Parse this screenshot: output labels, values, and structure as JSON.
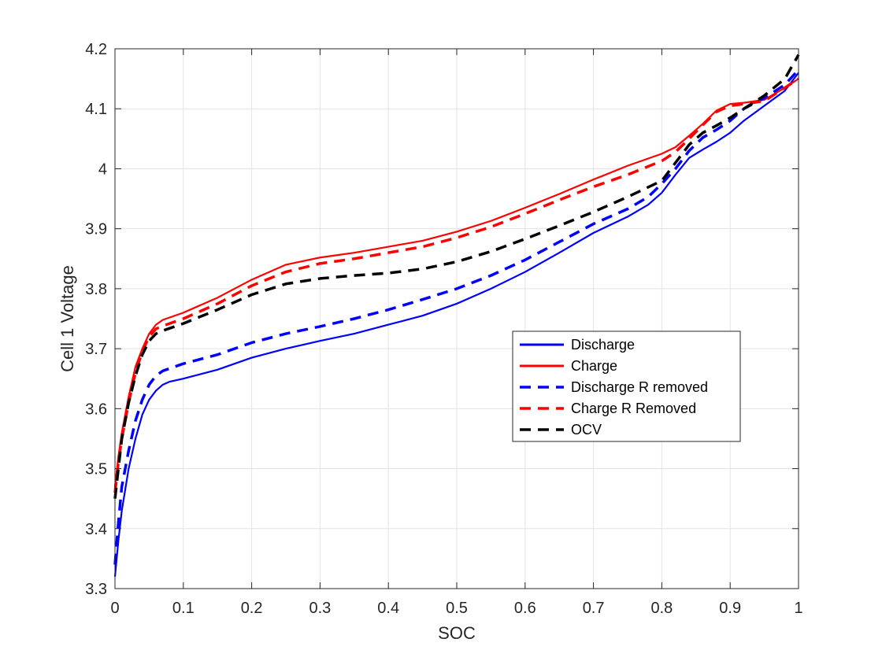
{
  "chart_data": {
    "type": "line",
    "title": "",
    "xlabel": "SOC",
    "ylabel": "Cell 1 Voltage",
    "xlim": [
      0,
      1
    ],
    "ylim": [
      3.3,
      4.2
    ],
    "xticks": [
      "0",
      "0.1",
      "0.2",
      "0.3",
      "0.4",
      "0.5",
      "0.6",
      "0.7",
      "0.8",
      "0.9",
      "1"
    ],
    "yticks": [
      "3.3",
      "3.4",
      "3.5",
      "3.6",
      "3.7",
      "3.8",
      "3.9",
      "4",
      "4.1",
      "4.2"
    ],
    "grid": true,
    "legend_position": "center-right",
    "series": [
      {
        "name": "Discharge",
        "color": "#0000ff",
        "style": "solid",
        "points": [
          [
            0,
            3.32
          ],
          [
            0.005,
            3.38
          ],
          [
            0.01,
            3.43
          ],
          [
            0.02,
            3.5
          ],
          [
            0.03,
            3.55
          ],
          [
            0.04,
            3.59
          ],
          [
            0.05,
            3.615
          ],
          [
            0.06,
            3.63
          ],
          [
            0.07,
            3.64
          ],
          [
            0.08,
            3.645
          ],
          [
            0.1,
            3.65
          ],
          [
            0.15,
            3.665
          ],
          [
            0.2,
            3.685
          ],
          [
            0.25,
            3.7
          ],
          [
            0.3,
            3.713
          ],
          [
            0.35,
            3.725
          ],
          [
            0.4,
            3.74
          ],
          [
            0.45,
            3.755
          ],
          [
            0.5,
            3.775
          ],
          [
            0.55,
            3.8
          ],
          [
            0.6,
            3.828
          ],
          [
            0.65,
            3.86
          ],
          [
            0.7,
            3.893
          ],
          [
            0.75,
            3.92
          ],
          [
            0.78,
            3.94
          ],
          [
            0.8,
            3.96
          ],
          [
            0.82,
            3.99
          ],
          [
            0.84,
            4.018
          ],
          [
            0.86,
            4.032
          ],
          [
            0.88,
            4.045
          ],
          [
            0.9,
            4.06
          ],
          [
            0.92,
            4.08
          ],
          [
            0.95,
            4.105
          ],
          [
            0.98,
            4.13
          ],
          [
            1.0,
            4.16
          ]
        ]
      },
      {
        "name": "Charge",
        "color": "#ff0000",
        "style": "solid",
        "points": [
          [
            0,
            3.47
          ],
          [
            0.005,
            3.52
          ],
          [
            0.01,
            3.56
          ],
          [
            0.02,
            3.62
          ],
          [
            0.03,
            3.67
          ],
          [
            0.04,
            3.7
          ],
          [
            0.05,
            3.725
          ],
          [
            0.06,
            3.74
          ],
          [
            0.07,
            3.748
          ],
          [
            0.1,
            3.76
          ],
          [
            0.15,
            3.785
          ],
          [
            0.2,
            3.815
          ],
          [
            0.25,
            3.84
          ],
          [
            0.3,
            3.852
          ],
          [
            0.35,
            3.86
          ],
          [
            0.4,
            3.87
          ],
          [
            0.45,
            3.88
          ],
          [
            0.5,
            3.895
          ],
          [
            0.55,
            3.913
          ],
          [
            0.6,
            3.935
          ],
          [
            0.65,
            3.958
          ],
          [
            0.7,
            3.982
          ],
          [
            0.75,
            4.005
          ],
          [
            0.8,
            4.025
          ],
          [
            0.82,
            4.036
          ],
          [
            0.84,
            4.055
          ],
          [
            0.86,
            4.075
          ],
          [
            0.88,
            4.097
          ],
          [
            0.9,
            4.108
          ],
          [
            0.92,
            4.11
          ],
          [
            0.95,
            4.115
          ],
          [
            0.98,
            4.135
          ],
          [
            1.0,
            4.15
          ]
        ]
      },
      {
        "name": "Discharge R removed",
        "color": "#0000ff",
        "style": "dashed",
        "points": [
          [
            0,
            3.34
          ],
          [
            0.005,
            3.41
          ],
          [
            0.01,
            3.47
          ],
          [
            0.02,
            3.53
          ],
          [
            0.03,
            3.58
          ],
          [
            0.04,
            3.615
          ],
          [
            0.05,
            3.64
          ],
          [
            0.06,
            3.655
          ],
          [
            0.07,
            3.663
          ],
          [
            0.1,
            3.675
          ],
          [
            0.15,
            3.69
          ],
          [
            0.2,
            3.71
          ],
          [
            0.25,
            3.725
          ],
          [
            0.3,
            3.737
          ],
          [
            0.35,
            3.75
          ],
          [
            0.4,
            3.765
          ],
          [
            0.45,
            3.782
          ],
          [
            0.5,
            3.8
          ],
          [
            0.55,
            3.822
          ],
          [
            0.6,
            3.848
          ],
          [
            0.65,
            3.878
          ],
          [
            0.7,
            3.908
          ],
          [
            0.75,
            3.933
          ],
          [
            0.78,
            3.953
          ],
          [
            0.8,
            3.975
          ],
          [
            0.82,
            4.0
          ],
          [
            0.84,
            4.03
          ],
          [
            0.86,
            4.052
          ],
          [
            0.88,
            4.065
          ],
          [
            0.9,
            4.08
          ],
          [
            0.92,
            4.1
          ],
          [
            0.95,
            4.118
          ],
          [
            0.98,
            4.14
          ],
          [
            1.0,
            4.165
          ]
        ]
      },
      {
        "name": "Charge R Removed",
        "color": "#ff0000",
        "style": "dashed",
        "points": [
          [
            0,
            3.46
          ],
          [
            0.005,
            3.51
          ],
          [
            0.01,
            3.55
          ],
          [
            0.02,
            3.61
          ],
          [
            0.03,
            3.66
          ],
          [
            0.04,
            3.695
          ],
          [
            0.05,
            3.72
          ],
          [
            0.06,
            3.733
          ],
          [
            0.07,
            3.738
          ],
          [
            0.1,
            3.75
          ],
          [
            0.15,
            3.775
          ],
          [
            0.2,
            3.805
          ],
          [
            0.25,
            3.828
          ],
          [
            0.3,
            3.842
          ],
          [
            0.35,
            3.85
          ],
          [
            0.4,
            3.86
          ],
          [
            0.45,
            3.87
          ],
          [
            0.5,
            3.885
          ],
          [
            0.55,
            3.903
          ],
          [
            0.6,
            3.925
          ],
          [
            0.65,
            3.948
          ],
          [
            0.7,
            3.97
          ],
          [
            0.75,
            3.99
          ],
          [
            0.8,
            4.013
          ],
          [
            0.82,
            4.028
          ],
          [
            0.84,
            4.05
          ],
          [
            0.86,
            4.073
          ],
          [
            0.88,
            4.095
          ],
          [
            0.9,
            4.105
          ],
          [
            0.92,
            4.108
          ],
          [
            0.95,
            4.113
          ],
          [
            0.98,
            4.135
          ],
          [
            1.0,
            4.15
          ]
        ]
      },
      {
        "name": "OCV",
        "color": "#000000",
        "style": "dashed",
        "points": [
          [
            0,
            3.45
          ],
          [
            0.005,
            3.5
          ],
          [
            0.01,
            3.55
          ],
          [
            0.02,
            3.61
          ],
          [
            0.03,
            3.655
          ],
          [
            0.04,
            3.69
          ],
          [
            0.05,
            3.713
          ],
          [
            0.06,
            3.725
          ],
          [
            0.07,
            3.73
          ],
          [
            0.1,
            3.742
          ],
          [
            0.15,
            3.765
          ],
          [
            0.2,
            3.79
          ],
          [
            0.25,
            3.808
          ],
          [
            0.3,
            3.817
          ],
          [
            0.35,
            3.822
          ],
          [
            0.4,
            3.826
          ],
          [
            0.45,
            3.833
          ],
          [
            0.5,
            3.845
          ],
          [
            0.55,
            3.862
          ],
          [
            0.6,
            3.883
          ],
          [
            0.65,
            3.905
          ],
          [
            0.7,
            3.928
          ],
          [
            0.75,
            3.953
          ],
          [
            0.8,
            3.98
          ],
          [
            0.82,
            4.01
          ],
          [
            0.84,
            4.04
          ],
          [
            0.86,
            4.06
          ],
          [
            0.88,
            4.072
          ],
          [
            0.9,
            4.085
          ],
          [
            0.92,
            4.1
          ],
          [
            0.95,
            4.122
          ],
          [
            0.98,
            4.15
          ],
          [
            1.0,
            4.19
          ]
        ]
      }
    ]
  }
}
